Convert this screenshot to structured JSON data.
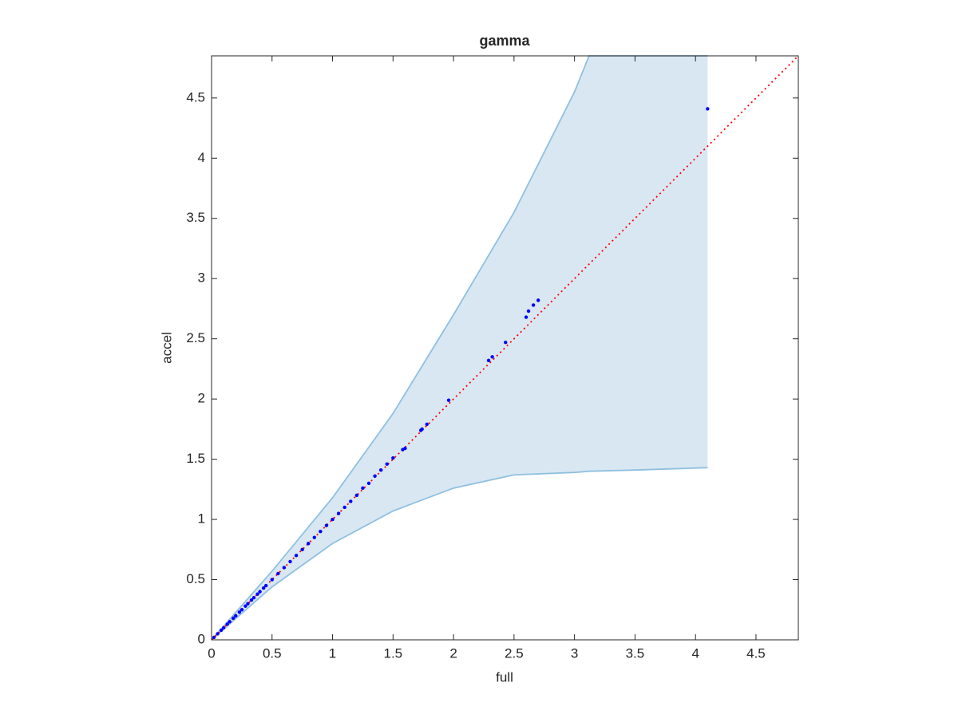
{
  "chart_data": {
    "type": "scatter",
    "title": "gamma",
    "xlabel": "full",
    "ylabel": "accel",
    "xlim": [
      0,
      4.85
    ],
    "ylim": [
      0,
      4.85
    ],
    "xticks": [
      0,
      0.5,
      1,
      1.5,
      2,
      2.5,
      3,
      3.5,
      4,
      4.5
    ],
    "yticks": [
      0,
      0.5,
      1,
      1.5,
      2,
      2.5,
      3,
      3.5,
      4,
      4.5
    ],
    "band": {
      "color": "#8fc0e0",
      "fill": "#d9e7f3",
      "x": [
        0,
        0.5,
        1,
        1.5,
        2,
        2.5,
        3,
        3.12,
        3.5,
        4.1
      ],
      "upper": [
        0,
        0.57,
        1.18,
        1.88,
        2.7,
        3.55,
        4.55,
        4.85,
        4.85,
        4.85
      ],
      "lower": [
        0,
        0.44,
        0.8,
        1.07,
        1.26,
        1.37,
        1.39,
        1.4,
        1.41,
        1.43
      ]
    },
    "reference": {
      "color": "#ff0000",
      "x": [
        0,
        4.85
      ],
      "values": [
        0,
        4.85
      ]
    },
    "points": {
      "color": "#0000ff",
      "x": [
        0.02,
        0.05,
        0.08,
        0.1,
        0.13,
        0.15,
        0.18,
        0.2,
        0.23,
        0.25,
        0.28,
        0.3,
        0.33,
        0.35,
        0.38,
        0.4,
        0.43,
        0.45,
        0.5,
        0.55,
        0.6,
        0.65,
        0.7,
        0.75,
        0.8,
        0.85,
        0.9,
        0.95,
        1.0,
        1.05,
        1.1,
        1.15,
        1.2,
        1.25,
        1.3,
        1.35,
        1.4,
        1.45,
        1.5,
        1.58,
        1.6,
        1.73,
        1.74,
        1.78,
        1.96,
        2.29,
        2.32,
        2.43,
        2.6,
        2.62,
        2.66,
        2.7,
        4.1
      ],
      "values": [
        0.02,
        0.05,
        0.08,
        0.1,
        0.13,
        0.15,
        0.18,
        0.2,
        0.23,
        0.25,
        0.28,
        0.3,
        0.33,
        0.35,
        0.38,
        0.4,
        0.43,
        0.45,
        0.5,
        0.55,
        0.6,
        0.65,
        0.7,
        0.75,
        0.8,
        0.85,
        0.9,
        0.95,
        1.0,
        1.05,
        1.1,
        1.15,
        1.2,
        1.26,
        1.3,
        1.36,
        1.41,
        1.46,
        1.51,
        1.58,
        1.59,
        1.74,
        1.75,
        1.79,
        1.99,
        2.32,
        2.35,
        2.47,
        2.68,
        2.73,
        2.78,
        2.82,
        4.41
      ]
    }
  }
}
